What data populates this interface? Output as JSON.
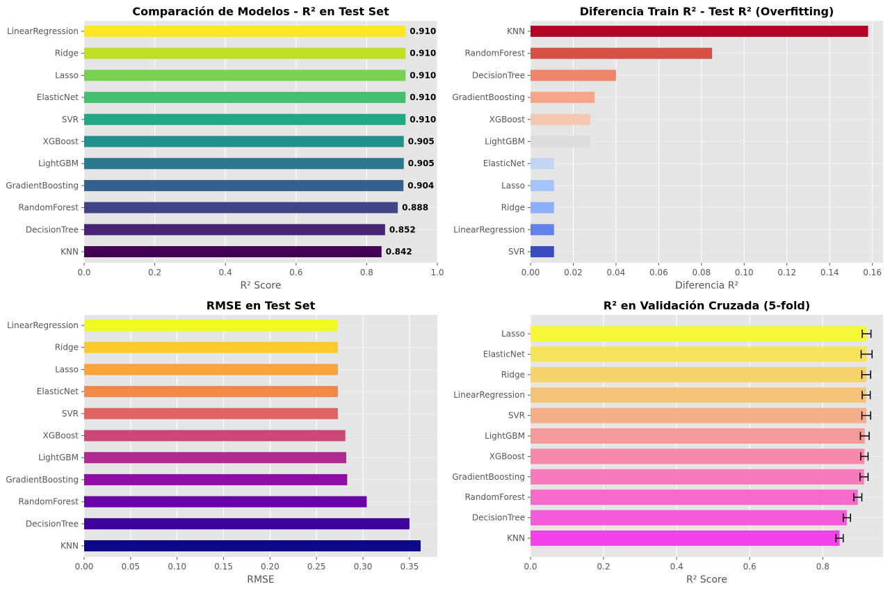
{
  "chart_data": [
    {
      "type": "bar",
      "orientation": "horizontal",
      "title": "Comparación de Modelos - R² en Test Set",
      "xlabel": "R² Score",
      "xlim": [
        0,
        1.0
      ],
      "xticks": [
        "0.0",
        "0.2",
        "0.4",
        "0.6",
        "0.8",
        "1.0"
      ],
      "xtick_values": [
        0,
        0.2,
        0.4,
        0.6,
        0.8,
        1.0
      ],
      "grid": true,
      "categories": [
        "LinearRegression",
        "Ridge",
        "Lasso",
        "ElasticNet",
        "SVR",
        "XGBoost",
        "LightGBM",
        "GradientBoosting",
        "RandomForest",
        "DecisionTree",
        "KNN"
      ],
      "values": [
        0.91,
        0.91,
        0.91,
        0.91,
        0.91,
        0.905,
        0.905,
        0.904,
        0.888,
        0.852,
        0.842
      ],
      "value_labels": [
        "0.910",
        "0.910",
        "0.910",
        "0.910",
        "0.910",
        "0.905",
        "0.905",
        "0.904",
        "0.888",
        "0.852",
        "0.842"
      ],
      "colors": [
        "#fde725",
        "#bddf26",
        "#7ad151",
        "#44bf70",
        "#22a884",
        "#21918c",
        "#2a788e",
        "#355f8d",
        "#414487",
        "#482475",
        "#440154"
      ]
    },
    {
      "type": "bar",
      "orientation": "horizontal",
      "title": "Diferencia Train R² - Test R² (Overfitting)",
      "xlabel": "Diferencia R²",
      "xlim": [
        0,
        0.165
      ],
      "xticks": [
        "0.00",
        "0.02",
        "0.04",
        "0.06",
        "0.08",
        "0.10",
        "0.12",
        "0.14",
        "0.16"
      ],
      "xtick_values": [
        0,
        0.02,
        0.04,
        0.06,
        0.08,
        0.1,
        0.12,
        0.14,
        0.16
      ],
      "grid": true,
      "categories": [
        "KNN",
        "RandomForest",
        "DecisionTree",
        "GradientBoosting",
        "XGBoost",
        "LightGBM",
        "ElasticNet",
        "Lasso",
        "Ridge",
        "LinearRegression",
        "SVR"
      ],
      "values": [
        0.158,
        0.085,
        0.04,
        0.03,
        0.028,
        0.028,
        0.011,
        0.011,
        0.011,
        0.011,
        0.011
      ],
      "colors": [
        "#b40426",
        "#d65244",
        "#ee8468",
        "#f6a586",
        "#f2c8b3",
        "#dddcdc",
        "#c3d5f4",
        "#a5c3fe",
        "#8db0fe",
        "#6282ea",
        "#3b4cc0"
      ]
    },
    {
      "type": "bar",
      "orientation": "horizontal",
      "title": "RMSE en Test Set",
      "xlabel": "RMSE",
      "xlim": [
        0,
        0.38
      ],
      "xticks": [
        "0.00",
        "0.05",
        "0.10",
        "0.15",
        "0.20",
        "0.25",
        "0.30",
        "0.35"
      ],
      "xtick_values": [
        0,
        0.05,
        0.1,
        0.15,
        0.2,
        0.25,
        0.3,
        0.35
      ],
      "grid": true,
      "categories": [
        "LinearRegression",
        "Ridge",
        "Lasso",
        "ElasticNet",
        "SVR",
        "XGBoost",
        "LightGBM",
        "GradientBoosting",
        "RandomForest",
        "DecisionTree",
        "KNN"
      ],
      "values": [
        0.273,
        0.273,
        0.273,
        0.273,
        0.273,
        0.281,
        0.282,
        0.283,
        0.304,
        0.35,
        0.362
      ],
      "colors": [
        "#f0f921",
        "#fdca26",
        "#fba238",
        "#f48849",
        "#e16462",
        "#cc4778",
        "#b12a90",
        "#8f0da4",
        "#6a00a8",
        "#3e049c",
        "#0d0887"
      ]
    },
    {
      "type": "bar",
      "orientation": "horizontal",
      "error_bars": true,
      "title": "R² en Validación Cruzada (5-fold)",
      "xlabel": "R² Score",
      "xlim": [
        0,
        0.965
      ],
      "xticks": [
        "0.0",
        "0.2",
        "0.4",
        "0.6",
        "0.8"
      ],
      "xtick_values": [
        0,
        0.2,
        0.4,
        0.6,
        0.8
      ],
      "grid": true,
      "categories": [
        "Lasso",
        "ElasticNet",
        "Ridge",
        "LinearRegression",
        "SVR",
        "LightGBM",
        "XGBoost",
        "GradientBoosting",
        "RandomForest",
        "DecisionTree",
        "KNN"
      ],
      "values": [
        0.92,
        0.92,
        0.919,
        0.919,
        0.919,
        0.915,
        0.914,
        0.913,
        0.896,
        0.866,
        0.846
      ],
      "errors": [
        0.012,
        0.015,
        0.012,
        0.011,
        0.012,
        0.012,
        0.01,
        0.011,
        0.011,
        0.01,
        0.01
      ],
      "colors": [
        "#f6f73a",
        "#f6e35a",
        "#f5d26a",
        "#f5c27a",
        "#f5ad8a",
        "#f59a9a",
        "#f68aaa",
        "#f77aba",
        "#f66acb",
        "#f55bd8",
        "#f641ea"
      ]
    }
  ]
}
